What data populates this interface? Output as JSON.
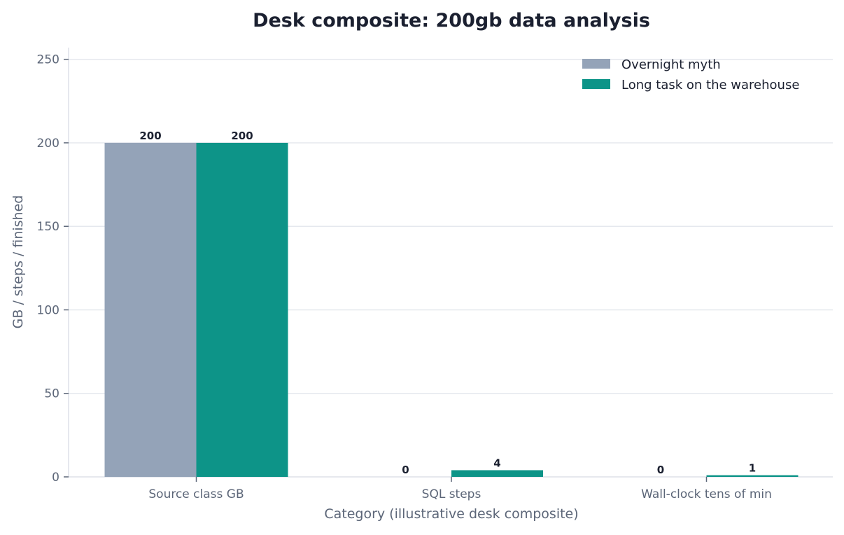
{
  "chart_data": {
    "type": "bar",
    "title": "Desk composite: 200gb data analysis",
    "xlabel": "Category (illustrative desk composite)",
    "ylabel": "GB / steps / finished",
    "categories": [
      "Source class GB",
      "SQL steps",
      "Wall-clock tens of min"
    ],
    "series": [
      {
        "name": "Overnight myth",
        "values": [
          200,
          0,
          0
        ],
        "color": "#94a3b8"
      },
      {
        "name": "Long task on the warehouse",
        "values": [
          200,
          4,
          1
        ],
        "color": "#0d9488"
      }
    ],
    "ylim": [
      0,
      257
    ],
    "yticks": [
      0,
      50,
      100,
      150,
      200,
      250
    ],
    "grid": true,
    "legend": "top-right"
  }
}
